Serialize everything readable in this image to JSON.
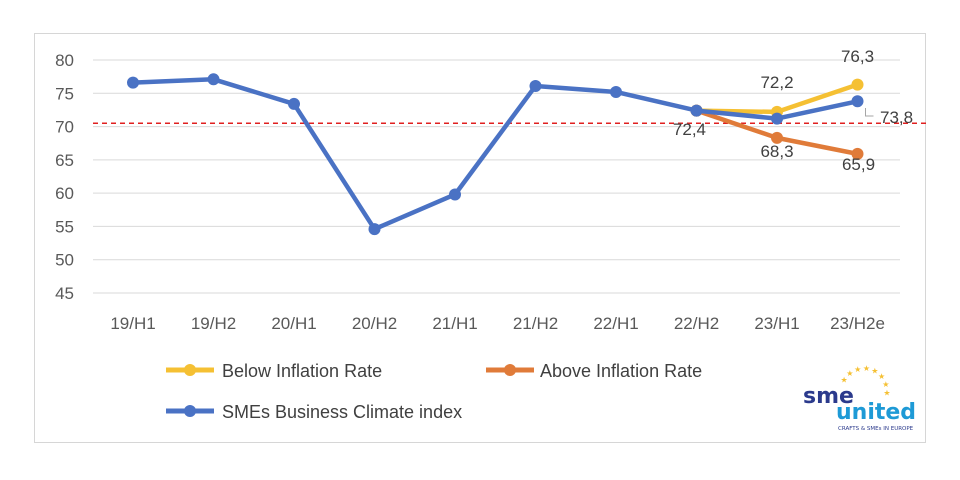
{
  "chart_data": {
    "type": "line",
    "categories": [
      "19/H1",
      "19/H2",
      "20/H1",
      "20/H2",
      "21/H1",
      "21/H2",
      "22/H1",
      "22/H2",
      "23/H1",
      "23/H2e"
    ],
    "ylim": [
      45,
      80
    ],
    "yticks": [
      "80",
      "75",
      "70",
      "65",
      "60",
      "55",
      "50",
      "45"
    ],
    "reference_line": {
      "value": 70.5,
      "color": "#e02020",
      "style": "dashed"
    },
    "series": [
      {
        "name": "Below Inflation Rate",
        "color": "#f5c033",
        "values": [
          null,
          null,
          null,
          null,
          null,
          null,
          null,
          72.4,
          72.2,
          76.3
        ]
      },
      {
        "name": "Above Inflation Rate",
        "color": "#e07b39",
        "values": [
          null,
          null,
          null,
          null,
          null,
          null,
          null,
          72.4,
          68.3,
          65.9
        ]
      },
      {
        "name": "SMEs Business Climate index",
        "color": "#4a72c4",
        "values": [
          76.6,
          77.1,
          73.4,
          54.6,
          59.8,
          76.1,
          75.2,
          72.4,
          71.2,
          73.8
        ]
      }
    ],
    "data_labels": {
      "below_23h1": "72,2",
      "below_23h2e": "76,3",
      "above_22h2": "72,4",
      "above_23h1": "68,3",
      "above_23h2e": "65,9",
      "index_23h2e": "73,8"
    },
    "grid": true,
    "legend_position": "bottom-left"
  },
  "logo": {
    "text_top": "sme",
    "text_bottom": "united",
    "tagline": "CRAFTS & SMEs IN EUROPE",
    "star_color": "#f5c033"
  }
}
